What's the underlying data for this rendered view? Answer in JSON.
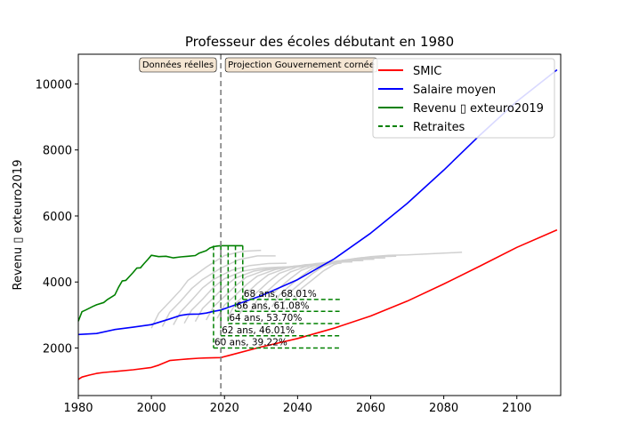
{
  "chart_data": {
    "type": "line",
    "title": "Professeur des écoles débutant en 1980",
    "xlabel": "",
    "ylabel": "Revenu ▯ exteuro2019",
    "xlim": [
      1980,
      2112
    ],
    "ylim": [
      560,
      10900
    ],
    "x_ticks": [
      1980,
      2000,
      2020,
      2040,
      2060,
      2080,
      2100
    ],
    "y_ticks": [
      2000,
      4000,
      6000,
      8000,
      10000
    ],
    "grid": false,
    "legend_position": "top-right",
    "vline": {
      "x": 2019
    },
    "annotations": [
      {
        "text": "Données réelles",
        "x": 2019,
        "side": "left"
      },
      {
        "text": "Projection Gouvernement cornée",
        "x": 2019,
        "side": "right"
      }
    ],
    "series": [
      {
        "name": "SMIC",
        "color": "#ff0000",
        "x": [
          1980,
          1981,
          1983,
          1985,
          1987,
          1990,
          1995,
          2000,
          2002,
          2005,
          2008,
          2010,
          2013,
          2015,
          2019,
          2030,
          2040,
          2050,
          2060,
          2070,
          2080,
          2090,
          2100,
          2111
        ],
        "y": [
          1050,
          1120,
          1180,
          1230,
          1260,
          1290,
          1340,
          1410,
          1480,
          1620,
          1650,
          1670,
          1690,
          1700,
          1710,
          2030,
          2290,
          2600,
          2970,
          3420,
          3940,
          4490,
          5050,
          5580
        ]
      },
      {
        "name": "Salaire moyen",
        "color": "#0000ff",
        "x": [
          1980,
          1985,
          1990,
          1995,
          2000,
          2005,
          2008,
          2010,
          2013,
          2015,
          2017,
          2019,
          2030,
          2040,
          2050,
          2060,
          2070,
          2080,
          2090,
          2100,
          2111
        ],
        "y": [
          2410,
          2440,
          2560,
          2630,
          2710,
          2880,
          2990,
          3020,
          3030,
          3060,
          3110,
          3150,
          3580,
          4070,
          4700,
          5480,
          6380,
          7390,
          8460,
          9470,
          10430
        ]
      },
      {
        "name": "Revenu ▯ exteuro2019",
        "color": "#008000",
        "x": [
          1980,
          1981,
          1982,
          1984,
          1985,
          1987,
          1988,
          1990,
          1991,
          1992,
          1993,
          1995,
          1996,
          1997,
          1998,
          1999,
          2000,
          2002,
          2004,
          2006,
          2008,
          2010,
          2012,
          2013,
          2015,
          2016,
          2017,
          2018,
          2019,
          2020,
          2022,
          2025
        ],
        "y": [
          2810,
          3100,
          3150,
          3260,
          3310,
          3380,
          3470,
          3610,
          3840,
          4030,
          4050,
          4290,
          4420,
          4430,
          4560,
          4680,
          4810,
          4770,
          4780,
          4730,
          4760,
          4780,
          4800,
          4870,
          4950,
          5030,
          5070,
          5090,
          5100,
          5100,
          5100,
          5100
        ]
      },
      {
        "name": "Retraites",
        "color": "#008000",
        "dashed": true,
        "start_year": [
          2017,
          2019,
          2021,
          2023,
          2025
        ],
        "end_year": 2052,
        "levels": [
          2000,
          2370,
          2740,
          3110,
          3470
        ],
        "labels": [
          "60 ans, 39.22%",
          "62 ans, 46.01%",
          "64 ans, 53.70%",
          "66 ans, 61.08%",
          "68 ans, 68.01%"
        ]
      }
    ],
    "background_series": {
      "color": "#d0d0d0",
      "curves": [
        {
          "x": [
            2000,
            2002,
            2005,
            2008,
            2010,
            2015,
            2020,
            2025,
            2030
          ],
          "y": [
            2600,
            3050,
            3400,
            3760,
            4050,
            4450,
            4800,
            4930,
            4960
          ]
        },
        {
          "x": [
            2003,
            2005,
            2008,
            2011,
            2014,
            2019,
            2024,
            2029,
            2034
          ],
          "y": [
            2650,
            3080,
            3420,
            3800,
            4080,
            4420,
            4680,
            4790,
            4790
          ]
        },
        {
          "x": [
            2006,
            2008,
            2011,
            2014,
            2017,
            2022,
            2027,
            2032,
            2037
          ],
          "y": [
            2700,
            3100,
            3450,
            3820,
            4080,
            4360,
            4500,
            4560,
            4570
          ]
        },
        {
          "x": [
            2009,
            2011,
            2014,
            2017,
            2020,
            2025,
            2030,
            2035,
            2040
          ],
          "y": [
            2750,
            3150,
            3480,
            3840,
            4100,
            4330,
            4420,
            4450,
            4460
          ]
        },
        {
          "x": [
            2012,
            2014,
            2017,
            2020,
            2023,
            2028,
            2033,
            2038,
            2043
          ],
          "y": [
            2800,
            3200,
            3520,
            3860,
            4120,
            4330,
            4420,
            4460,
            4470
          ]
        },
        {
          "x": [
            2015,
            2017,
            2020,
            2023,
            2026,
            2031,
            2036,
            2041,
            2046
          ],
          "y": [
            2850,
            3250,
            3560,
            3880,
            4150,
            4350,
            4450,
            4490,
            4500
          ]
        },
        {
          "x": [
            2018,
            2020,
            2023,
            2026,
            2029,
            2034,
            2039,
            2044,
            2049
          ],
          "y": [
            2900,
            3300,
            3600,
            3920,
            4180,
            4380,
            4480,
            4520,
            4530
          ]
        },
        {
          "x": [
            2021,
            2023,
            2026,
            2029,
            2032,
            2037,
            2042,
            2047,
            2052
          ],
          "y": [
            2950,
            3350,
            3650,
            3960,
            4220,
            4420,
            4520,
            4560,
            4570
          ]
        },
        {
          "x": [
            2024,
            2026,
            2029,
            2032,
            2035,
            2040,
            2045,
            2050,
            2055
          ],
          "y": [
            3000,
            3400,
            3700,
            4000,
            4260,
            4460,
            4560,
            4600,
            4610
          ]
        },
        {
          "x": [
            2027,
            2029,
            2032,
            2035,
            2038,
            2043,
            2048,
            2053,
            2058
          ],
          "y": [
            3080,
            3460,
            3750,
            4050,
            4300,
            4500,
            4600,
            4640,
            4650
          ]
        },
        {
          "x": [
            2030,
            2032,
            2035,
            2038,
            2041,
            2046,
            2051,
            2056,
            2061
          ],
          "y": [
            3150,
            3520,
            3820,
            4100,
            4350,
            4550,
            4640,
            4680,
            4690
          ]
        },
        {
          "x": [
            2033,
            2035,
            2038,
            2041,
            2044,
            2049,
            2054,
            2059,
            2064
          ],
          "y": [
            3250,
            3600,
            3900,
            4170,
            4410,
            4600,
            4680,
            4720,
            4730
          ]
        },
        {
          "x": [
            2036,
            2038,
            2041,
            2044,
            2047,
            2052,
            2057,
            2062,
            2067
          ],
          "y": [
            3350,
            3700,
            3980,
            4250,
            4470,
            4650,
            4730,
            4770,
            4780
          ]
        },
        {
          "x": [
            2039,
            2041,
            2044,
            2047,
            2050,
            2055,
            2060,
            2065,
            2070,
            2085
          ],
          "y": [
            3450,
            3800,
            4060,
            4330,
            4530,
            4700,
            4770,
            4810,
            4820,
            4900
          ]
        }
      ]
    }
  }
}
